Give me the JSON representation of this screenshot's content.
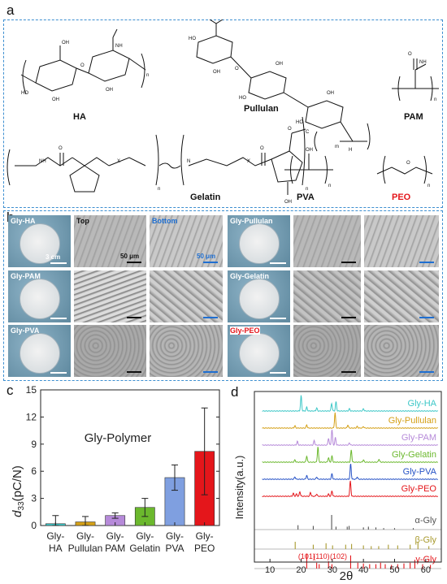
{
  "panel_a": {
    "letter": "a",
    "polymers": [
      {
        "name": "HA",
        "color": "#111111"
      },
      {
        "name": "Pullulan",
        "color": "#111111"
      },
      {
        "name": "PAM",
        "color": "#111111"
      },
      {
        "name": "Gelatin",
        "color": "#111111"
      },
      {
        "name": "PVA",
        "color": "#111111"
      },
      {
        "name": "PEO",
        "color": "#e4161b"
      }
    ],
    "atoms": {
      "oh": "OH",
      "ho": "HO",
      "o": "O",
      "n": "N",
      "h": "H",
      "nh": "NH",
      "nh2": "NH",
      "x": "X",
      "n_sub": "n",
      "m_sub": "m",
      "c": "C"
    }
  },
  "panel_b": {
    "letter": "b",
    "samples": [
      {
        "label": "Gly-HA",
        "label_color": "#ffffff"
      },
      {
        "label": "Gly-Pullulan",
        "label_color": "#ffffff"
      },
      {
        "label": "Gly-PAM",
        "label_color": "#ffffff"
      },
      {
        "label": "Gly-Gelatin",
        "label_color": "#ffffff"
      },
      {
        "label": "Gly-PVA",
        "label_color": "#ffffff"
      },
      {
        "label": "Gly-PEO",
        "label_color": "#e4161b"
      }
    ],
    "top_label": "Top",
    "bottom_label": "Bottom",
    "scale_photo": "3 cm",
    "scale_sem_top": "50 μm",
    "scale_sem_bottom": "50 μm"
  },
  "panel_c": {
    "letter": "c",
    "chart_data": {
      "type": "bar",
      "title": "Gly-Polymer",
      "ylabel_sym": "d",
      "ylabel_sub": "33",
      "ylabel_unit": "(pC/N)",
      "ylim": [
        0,
        15
      ],
      "yticks": [
        "0",
        "3",
        "6",
        "9",
        "12",
        "15"
      ],
      "categories": [
        {
          "line1": "Gly-",
          "line2": "HA"
        },
        {
          "line1": "Gly-",
          "line2": "Pullulan"
        },
        {
          "line1": "Gly-",
          "line2": "PAM"
        },
        {
          "line1": "Gly-",
          "line2": "Gelatin"
        },
        {
          "line1": "Gly-",
          "line2": "PVA"
        },
        {
          "line1": "Gly-",
          "line2": "PEO"
        }
      ],
      "values": [
        0.2,
        0.4,
        1.1,
        2.0,
        5.3,
        8.2
      ],
      "errors": [
        0.9,
        0.6,
        0.3,
        1.0,
        1.4,
        4.8
      ],
      "colors": [
        "#3cc7c7",
        "#d4a017",
        "#b68ad9",
        "#6bb82d",
        "#7f9fe0",
        "#e4161b"
      ]
    }
  },
  "panel_d": {
    "letter": "d",
    "chart_data": {
      "type": "line",
      "xlabel": "2θ",
      "ylabel": "Intensity(a.u.)",
      "xlim": [
        5,
        65
      ],
      "xticks": [
        "10",
        "20",
        "30",
        "40",
        "50",
        "60"
      ],
      "series": [
        {
          "name": "Gly-HA",
          "color": "#3cc7c7",
          "peaks": [
            [
              20.0,
              1.0
            ],
            [
              21.8,
              0.25
            ],
            [
              25.0,
              0.2
            ],
            [
              29.8,
              0.5
            ],
            [
              31.2,
              0.6
            ],
            [
              35.5,
              0.15
            ],
            [
              40.0,
              0.15
            ]
          ]
        },
        {
          "name": "Gly-Pullulan",
          "color": "#d4a017",
          "peaks": [
            [
              18.0,
              0.15
            ],
            [
              21.8,
              0.2
            ],
            [
              30.9,
              1.0
            ],
            [
              35.0,
              0.2
            ],
            [
              38.0,
              0.1
            ],
            [
              40.0,
              0.1
            ]
          ]
        },
        {
          "name": "Gly-PAM",
          "color": "#b68ad9",
          "peaks": [
            [
              18.8,
              0.25
            ],
            [
              24.2,
              0.3
            ],
            [
              28.8,
              0.45
            ],
            [
              29.9,
              1.0
            ],
            [
              31.0,
              0.5
            ],
            [
              35.5,
              0.15
            ]
          ]
        },
        {
          "name": "Gly-Gelatin",
          "color": "#6bb82d",
          "peaks": [
            [
              18.0,
              0.15
            ],
            [
              21.8,
              0.4
            ],
            [
              25.4,
              1.0
            ],
            [
              28.8,
              0.3
            ],
            [
              29.9,
              0.4
            ],
            [
              36.1,
              0.8
            ],
            [
              40.0,
              0.15
            ],
            [
              45.0,
              0.2
            ]
          ]
        },
        {
          "name": "Gly-PVA",
          "color": "#2652c6",
          "peaks": [
            [
              18.0,
              0.15
            ],
            [
              21.8,
              0.25
            ],
            [
              25.0,
              0.15
            ],
            [
              29.9,
              0.35
            ],
            [
              35.9,
              1.0
            ],
            [
              38.0,
              0.15
            ]
          ]
        },
        {
          "name": "Gly-PEO",
          "color": "#e4161b",
          "peaks": [
            [
              17.5,
              0.2
            ],
            [
              18.5,
              0.15
            ],
            [
              19.6,
              0.3
            ],
            [
              23.0,
              0.25
            ],
            [
              25.0,
              0.15
            ],
            [
              28.8,
              0.15
            ],
            [
              29.9,
              0.35
            ],
            [
              35.8,
              1.0
            ]
          ]
        }
      ],
      "references": [
        {
          "name": "α-Gly",
          "color": "#555555",
          "sticks": [
            [
              19.0,
              0.3
            ],
            [
              23.9,
              0.25
            ],
            [
              29.8,
              1.0
            ],
            [
              31.2,
              0.2
            ],
            [
              34.8,
              0.2
            ],
            [
              35.4,
              0.25
            ],
            [
              40.0,
              0.15
            ],
            [
              41.6,
              0.2
            ],
            [
              44.0,
              0.15
            ],
            [
              46.5,
              0.1
            ],
            [
              50.0,
              0.1
            ],
            [
              56.0,
              0.1
            ]
          ]
        },
        {
          "name": "β-Gly",
          "color": "#a89a2e",
          "sticks": [
            [
              18.1,
              0.5
            ],
            [
              23.9,
              0.3
            ],
            [
              28.0,
              0.4
            ],
            [
              30.1,
              0.25
            ],
            [
              34.3,
              0.3
            ],
            [
              36.2,
              0.35
            ],
            [
              40.0,
              0.25
            ],
            [
              42.5,
              0.2
            ],
            [
              44.9,
              0.2
            ],
            [
              48.0,
              0.3
            ],
            [
              51.0,
              0.25
            ],
            [
              55.0,
              0.3
            ],
            [
              57.5,
              0.5
            ],
            [
              61.0,
              0.2
            ]
          ]
        },
        {
          "name": "γ-Gly",
          "color": "#e4161b",
          "sticks": [
            [
              21.8,
              1.0
            ],
            [
              25.0,
              0.4
            ],
            [
              25.8,
              0.3
            ],
            [
              28.8,
              0.5
            ],
            [
              29.9,
              0.3
            ],
            [
              35.9,
              0.9
            ],
            [
              38.2,
              0.4
            ],
            [
              40.0,
              0.35
            ],
            [
              42.0,
              0.3
            ],
            [
              44.0,
              0.3
            ],
            [
              45.5,
              0.4
            ],
            [
              47.0,
              0.3
            ],
            [
              49.0,
              0.25
            ],
            [
              51.0,
              0.3
            ],
            [
              53.0,
              0.35
            ],
            [
              55.0,
              0.4
            ],
            [
              56.5,
              0.6
            ],
            [
              59.0,
              0.3
            ],
            [
              61.5,
              0.25
            ]
          ]
        }
      ],
      "miller": [
        "(101)",
        "(110)",
        "(102)"
      ]
    }
  }
}
